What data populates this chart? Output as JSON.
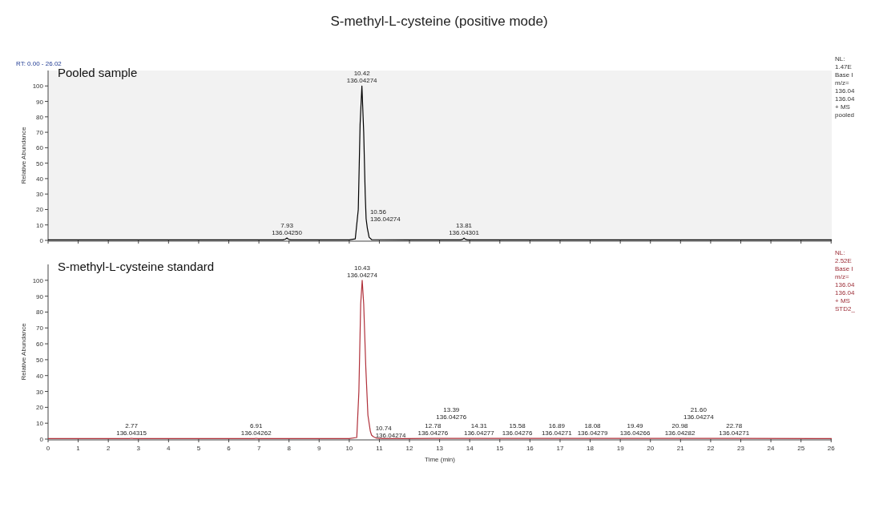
{
  "chart_data": [
    {
      "type": "line",
      "title": "S-methyl-L-cysteine (positive mode)",
      "subtitle": "Pooled sample",
      "ylabel": "Relative Abundance",
      "xlim": [
        0,
        26.02
      ],
      "xticks": [
        0,
        1,
        2,
        3,
        4,
        5,
        6,
        7,
        8,
        9,
        10,
        11,
        12,
        13,
        14,
        15,
        16,
        17,
        18,
        19,
        20,
        21,
        22,
        23,
        24,
        25,
        26
      ],
      "ylim": [
        0,
        110
      ],
      "yticks": [
        0,
        10,
        20,
        30,
        40,
        50,
        60,
        70,
        80,
        90,
        100
      ],
      "tick_labels": "y",
      "grid": false,
      "series": [
        {
          "color": "#000000",
          "x": [
            0,
            2,
            4,
            6,
            7.8,
            7.88,
            7.93,
            7.98,
            8.05,
            10,
            10.2,
            10.3,
            10.36,
            10.42,
            10.48,
            10.53,
            10.56,
            10.6,
            10.66,
            10.75,
            13.7,
            13.77,
            13.81,
            13.85,
            13.92,
            18,
            22,
            26.02
          ],
          "values": [
            0.3,
            0.3,
            0.3,
            0.3,
            0.3,
            0.8,
            1.5,
            0.8,
            0.3,
            0.3,
            1,
            20,
            75,
            100,
            70,
            30,
            14,
            8,
            2,
            0.4,
            0.3,
            0.7,
            1.5,
            0.7,
            0.3,
            0.3,
            0.3,
            0.3
          ]
        }
      ],
      "annotations": [
        "RT: 0.00 - 26.02",
        "NL:\n1.47E\nBase I\nm/z=\n136.04\n136.04\n+  MS\npooled",
        {
          "text": "7.93\n136.04250",
          "x": 7.93,
          "y": 1.5
        },
        {
          "text": "10.42\n136.04274",
          "x": 10.42,
          "y": 100
        },
        {
          "text": "10.56\n136.04274",
          "x": 10.56,
          "y": 14
        },
        {
          "text": "13.81\n136.04301",
          "x": 13.81,
          "y": 1.5
        }
      ]
    },
    {
      "type": "line",
      "subtitle": "S-methyl-L-cysteine standard",
      "xlabel": "Time (min)",
      "ylabel": "Relative Abundance",
      "xlim": [
        0,
        26.02
      ],
      "xticks": [
        0,
        1,
        2,
        3,
        4,
        5,
        6,
        7,
        8,
        9,
        10,
        11,
        12,
        13,
        14,
        15,
        16,
        17,
        18,
        19,
        20,
        21,
        22,
        23,
        24,
        25,
        26
      ],
      "ylim": [
        0,
        110
      ],
      "yticks": [
        0,
        10,
        20,
        30,
        40,
        50,
        60,
        70,
        80,
        90,
        100
      ],
      "grid": false,
      "series": [
        {
          "color": "#b0303a",
          "x": [
            0,
            2.7,
            2.77,
            2.84,
            6.85,
            6.91,
            6.97,
            10,
            10.25,
            10.32,
            10.38,
            10.43,
            10.48,
            10.55,
            10.62,
            10.7,
            10.74,
            10.8,
            10.9,
            11.1,
            12.78,
            13.39,
            14.31,
            15.58,
            16.89,
            18.08,
            19.49,
            20.98,
            21.6,
            22.78,
            26.02
          ],
          "values": [
            0.3,
            0.3,
            0.5,
            0.3,
            0.3,
            0.5,
            0.3,
            0.3,
            1,
            30,
            85,
            100,
            85,
            45,
            15,
            5,
            2.5,
            1.5,
            0.6,
            0.3,
            0.4,
            0.4,
            0.4,
            0.4,
            0.4,
            0.4,
            0.4,
            0.4,
            0.4,
            0.4,
            0.3
          ]
        }
      ],
      "annotations": [
        "NL:\n2.52E\nBase I\nm/z=\n136.04\n136.04\n+  MS\nSTD2_",
        {
          "text": "2.77\n136.04315",
          "x": 2.77,
          "y": 0.5
        },
        {
          "text": "6.91\n136.04262",
          "x": 6.91,
          "y": 0.5
        },
        {
          "text": "10.43\n136.04274",
          "x": 10.43,
          "y": 100
        },
        {
          "text": "10.74\n136.04274",
          "x": 10.74,
          "y": 2.5
        },
        {
          "text": "12.78\n136.04276",
          "x": 12.78,
          "y": 0.4
        },
        {
          "text": "13.39\n136.04276",
          "x": 13.39,
          "y": 0.4
        },
        {
          "text": "14.31\n136.04277",
          "x": 14.31,
          "y": 0.4
        },
        {
          "text": "15.58\n136.04276",
          "x": 15.58,
          "y": 0.4
        },
        {
          "text": "16.89\n136.04271",
          "x": 16.89,
          "y": 0.4
        },
        {
          "text": "18.08\n136.04279",
          "x": 18.08,
          "y": 0.4
        },
        {
          "text": "19.49\n136.04266",
          "x": 19.49,
          "y": 0.4
        },
        {
          "text": "20.98\n136.04282",
          "x": 20.98,
          "y": 0.4
        },
        {
          "text": "21.60\n136.04274",
          "x": 21.6,
          "y": 0.4
        },
        {
          "text": "22.78\n136.04271",
          "x": 22.78,
          "y": 0.4
        }
      ]
    }
  ]
}
